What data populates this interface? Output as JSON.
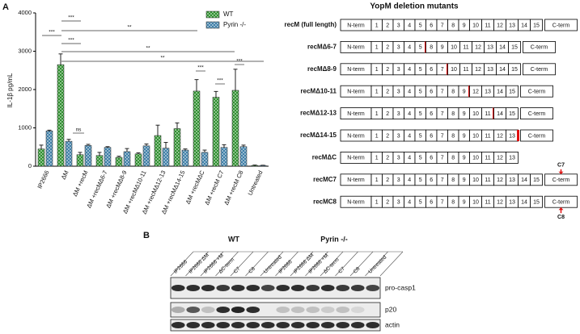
{
  "panels": {
    "a": "A",
    "b": "B"
  },
  "chart_data": {
    "type": "bar",
    "y_label": "IL-1β pg/mL",
    "categories": [
      "IP2666",
      "ΔM",
      "ΔM +recM",
      "ΔM +recMΔ6-7",
      "ΔM +recMΔ8-9",
      "ΔM +recMΔ10-11",
      "ΔM +recMΔ12-13",
      "ΔM +recMΔ14-15",
      "ΔM +recMΔC",
      "ΔM +recM C7",
      "ΔM +recM C8",
      "Untreated"
    ],
    "series": [
      {
        "name": "WT",
        "color": "#2f8f2f",
        "values": [
          450,
          2650,
          300,
          280,
          230,
          320,
          800,
          980,
          1960,
          1800,
          1980,
          20
        ],
        "errors": [
          100,
          280,
          60,
          80,
          30,
          30,
          270,
          150,
          300,
          150,
          550,
          10
        ]
      },
      {
        "name": "Pyrin -/-",
        "color": "#3f7fa8",
        "values": [
          920,
          650,
          540,
          490,
          380,
          530,
          470,
          420,
          360,
          490,
          510,
          20
        ],
        "errors": [
          20,
          50,
          30,
          20,
          80,
          50,
          150,
          30,
          60,
          70,
          40,
          5
        ]
      }
    ],
    "ylim": [
      0,
      4000
    ],
    "yticks": [
      0,
      1000,
      2000,
      3000,
      4000
    ],
    "annotations": [
      "***",
      "***",
      "***",
      "**",
      "**",
      "**",
      "ns",
      "***",
      "***",
      "***"
    ]
  },
  "diagram": {
    "title": "YopM deletion mutants",
    "rows": [
      {
        "label": "recM  (full length)",
        "segments": [
          "N-term",
          "1",
          "2",
          "3",
          "4",
          "5",
          "6",
          "7",
          "8",
          "9",
          "10",
          "11",
          "12",
          "13",
          "14",
          "15",
          "C-term"
        ]
      },
      {
        "label": "recMΔ6-7",
        "segments": [
          "N-term",
          "1",
          "2",
          "3",
          "4",
          "5",
          "8",
          "9",
          "10",
          "11",
          "12",
          "13",
          "14",
          "15",
          "C-term"
        ]
      },
      {
        "label": "recMΔ8-9",
        "segments": [
          "N-term",
          "1",
          "2",
          "3",
          "4",
          "5",
          "6",
          "7",
          "10",
          "11",
          "12",
          "13",
          "14",
          "15",
          "C-term"
        ]
      },
      {
        "label": "recMΔ10-11",
        "segments": [
          "N-term",
          "1",
          "2",
          "3",
          "4",
          "5",
          "6",
          "7",
          "8",
          "9",
          "12",
          "13",
          "14",
          "15",
          "C-term"
        ]
      },
      {
        "label": "recMΔ12-13",
        "segments": [
          "N-term",
          "1",
          "2",
          "3",
          "4",
          "5",
          "6",
          "7",
          "8",
          "9",
          "10",
          "11",
          "14",
          "15",
          "C-term"
        ]
      },
      {
        "label": "recMΔ14-15",
        "segments": [
          "N-term",
          "1",
          "2",
          "3",
          "4",
          "5",
          "6",
          "7",
          "8",
          "9",
          "10",
          "11",
          "12",
          "13",
          "C-term"
        ]
      },
      {
        "label": "recMΔC",
        "segments": [
          "N-term",
          "1",
          "2",
          "3",
          "4",
          "5",
          "6",
          "7",
          "8",
          "9",
          "10",
          "11",
          "12",
          "13"
        ]
      },
      {
        "label": "recMC7",
        "segments": [
          "N-term",
          "1",
          "2",
          "3",
          "4",
          "5",
          "6",
          "7",
          "8",
          "9",
          "10",
          "11",
          "12",
          "13",
          "14",
          "15",
          "C-term"
        ],
        "marker": "C7"
      },
      {
        "label": "recMC8",
        "segments": [
          "N-term",
          "1",
          "2",
          "3",
          "4",
          "5",
          "6",
          "7",
          "8",
          "9",
          "10",
          "11",
          "12",
          "13",
          "14",
          "15",
          "C-term"
        ],
        "marker": "C8"
      }
    ]
  },
  "blot": {
    "groups": [
      "WT",
      "Pyrin -/-"
    ],
    "lanes": [
      "IP2666",
      "IP2666 ΔM",
      "IP2666 +M",
      "ΔC-term",
      "C7",
      "C8",
      "Untreated",
      "IP2666",
      "IP2666 ΔM",
      "IP2666 +M",
      "ΔC-term",
      "C7",
      "C8",
      "Untreated"
    ],
    "bands": [
      "pro-casp1",
      "p20",
      "actin"
    ]
  }
}
